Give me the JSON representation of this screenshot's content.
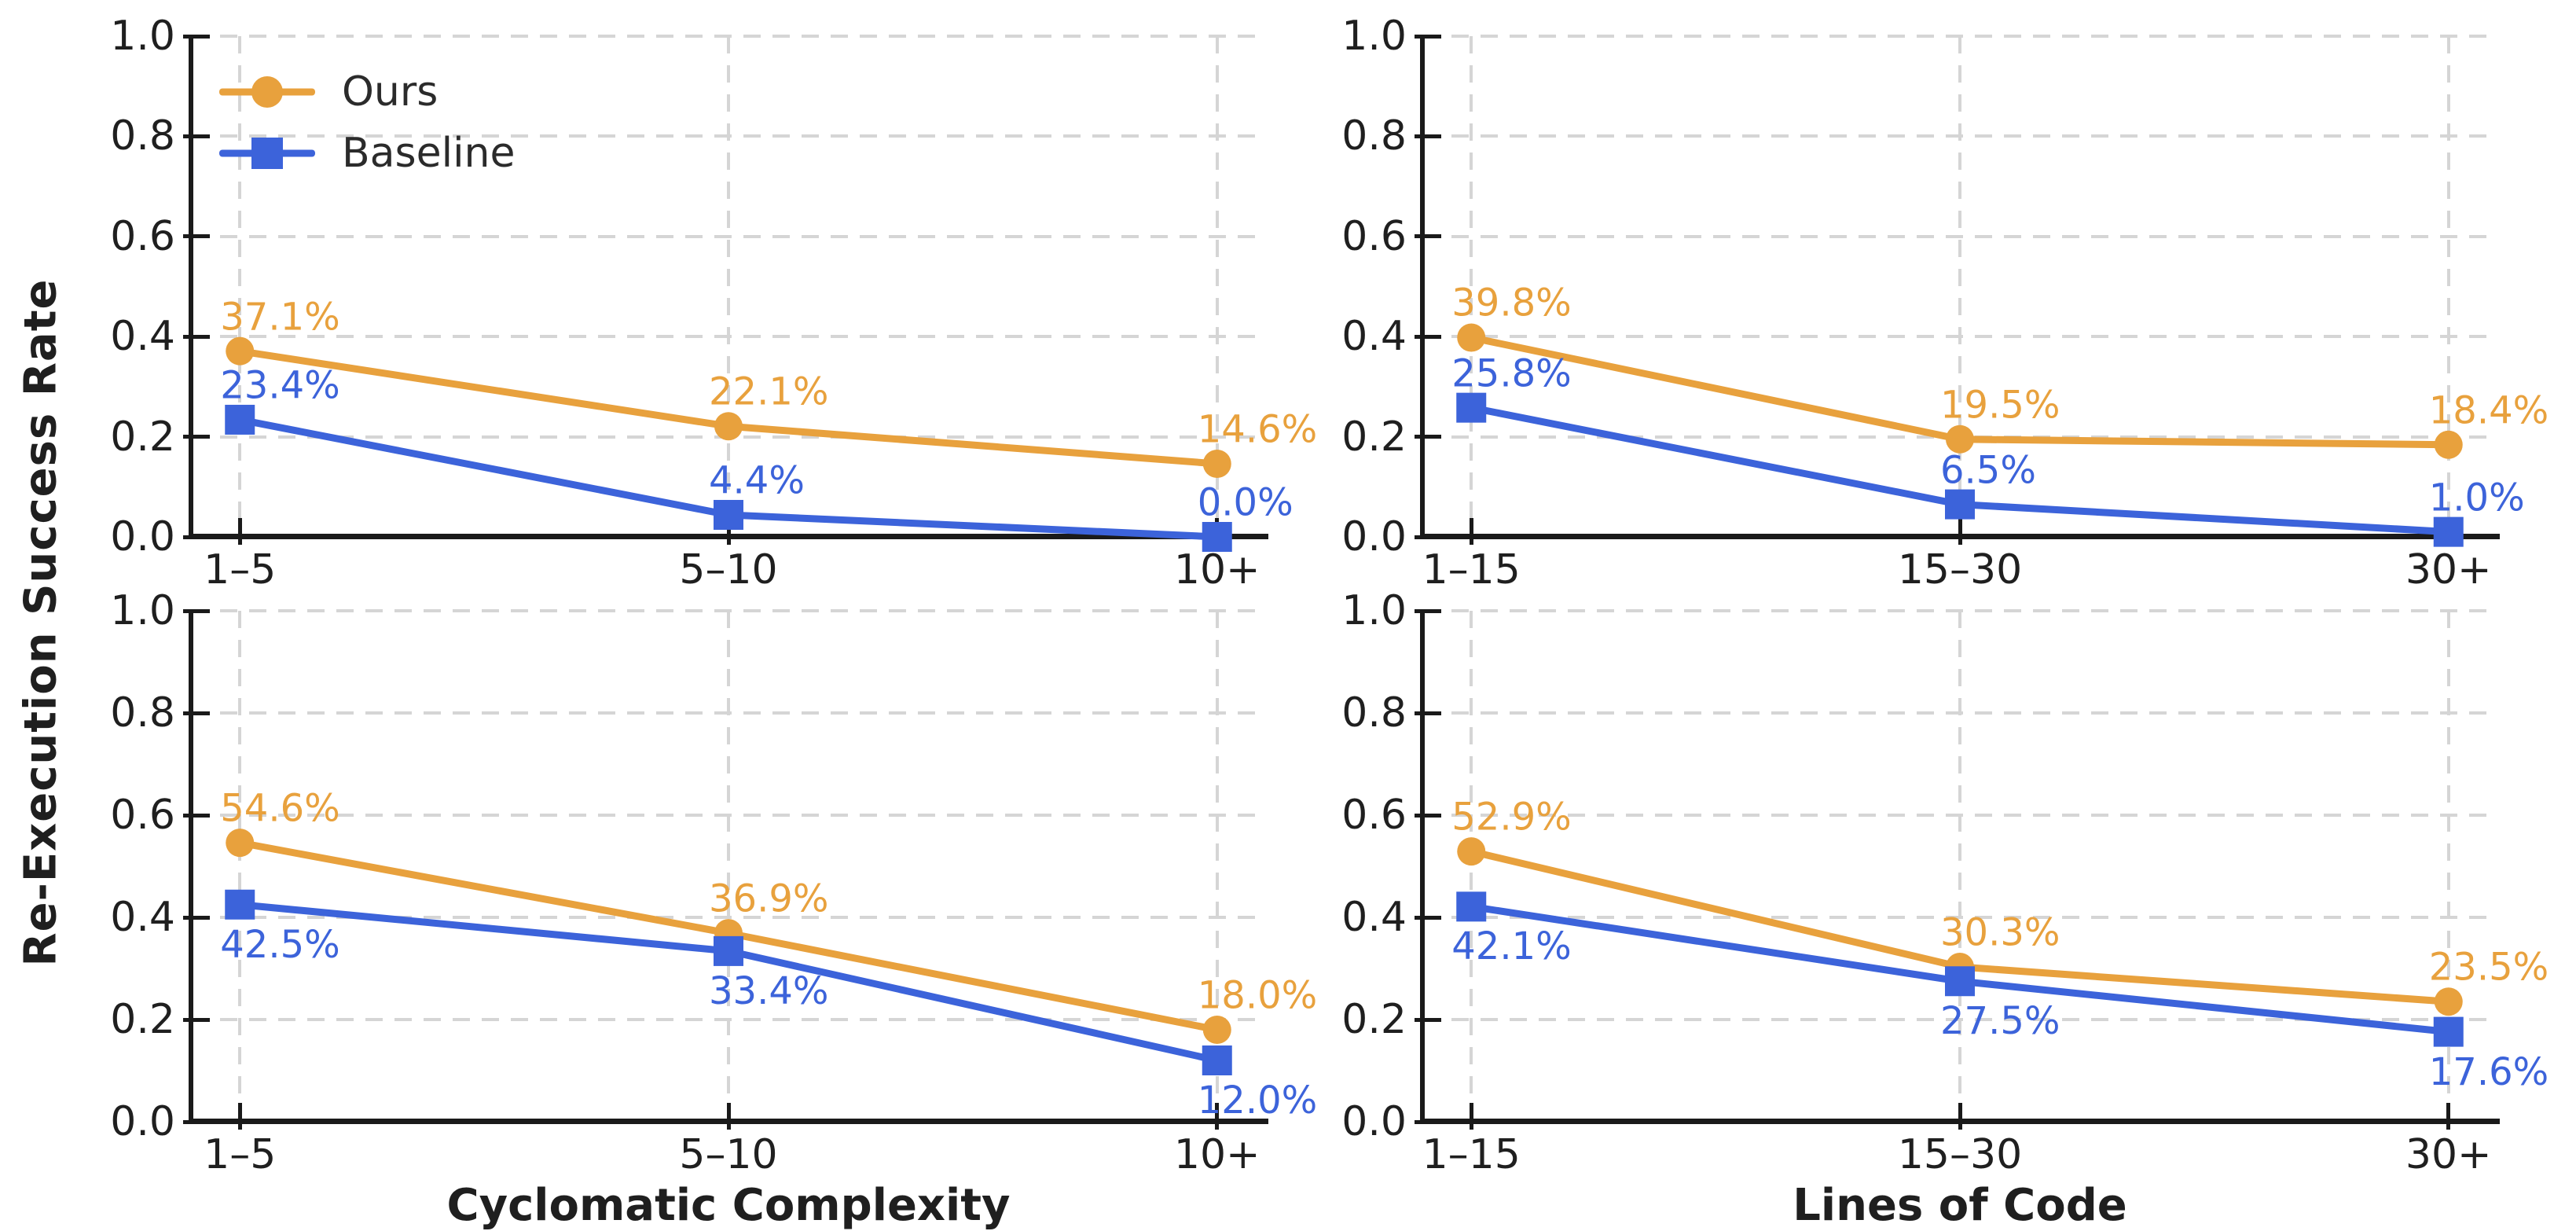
{
  "figure": {
    "ylabel": "Re-Execution Success Rate",
    "yticks": [
      "0.0",
      "0.2",
      "0.4",
      "0.6",
      "0.8",
      "1.0"
    ],
    "colors": {
      "ours": "#E8A13D",
      "baseline": "#3C63DA",
      "grid": "#D5D5D5",
      "spine": "#1A1A1A",
      "text": "#1F1F1F"
    },
    "legend": {
      "items": [
        {
          "label": "Ours",
          "marker": "circle"
        },
        {
          "label": "Baseline",
          "marker": "square"
        }
      ]
    }
  },
  "chart_data": [
    {
      "type": "line",
      "position": "top-left",
      "title": "",
      "xlabel": "",
      "ylabel": "",
      "ylim": [
        0.0,
        1.0
      ],
      "grid": "dashed",
      "legend_position": "upper-left-inside",
      "categories": [
        "1–5",
        "5–10",
        "10+"
      ],
      "series": [
        {
          "name": "Ours",
          "marker": "circle",
          "values": [
            0.371,
            0.221,
            0.146
          ],
          "point_labels": [
            "37.1%",
            "22.1%",
            "14.6%"
          ],
          "label_side": "above"
        },
        {
          "name": "Baseline",
          "marker": "square",
          "values": [
            0.234,
            0.044,
            0.0
          ],
          "point_labels": [
            "23.4%",
            "4.4%",
            "0.0%"
          ],
          "label_side": "above"
        }
      ]
    },
    {
      "type": "line",
      "position": "top-right",
      "title": "",
      "xlabel": "",
      "ylabel": "",
      "ylim": [
        0.0,
        1.0
      ],
      "grid": "dashed",
      "categories": [
        "1–15",
        "15–30",
        "30+"
      ],
      "series": [
        {
          "name": "Ours",
          "marker": "circle",
          "values": [
            0.398,
            0.195,
            0.184
          ],
          "point_labels": [
            "39.8%",
            "19.5%",
            "18.4%"
          ],
          "label_side": "above"
        },
        {
          "name": "Baseline",
          "marker": "square",
          "values": [
            0.258,
            0.065,
            0.01
          ],
          "point_labels": [
            "25.8%",
            "6.5%",
            "1.0%"
          ],
          "label_side": "above"
        }
      ]
    },
    {
      "type": "line",
      "position": "bottom-left",
      "title": "",
      "xlabel": "Cyclomatic Complexity",
      "ylabel": "",
      "ylim": [
        0.0,
        1.0
      ],
      "grid": "dashed",
      "categories": [
        "1–5",
        "5–10",
        "10+"
      ],
      "series": [
        {
          "name": "Ours",
          "marker": "circle",
          "values": [
            0.546,
            0.369,
            0.18
          ],
          "point_labels": [
            "54.6%",
            "36.9%",
            "18.0%"
          ],
          "label_side": "above"
        },
        {
          "name": "Baseline",
          "marker": "square",
          "values": [
            0.425,
            0.334,
            0.12
          ],
          "point_labels": [
            "42.5%",
            "33.4%",
            "12.0%"
          ],
          "label_side": "below"
        }
      ]
    },
    {
      "type": "line",
      "position": "bottom-right",
      "title": "",
      "xlabel": "Lines of Code",
      "ylabel": "",
      "ylim": [
        0.0,
        1.0
      ],
      "grid": "dashed",
      "categories": [
        "1–15",
        "15–30",
        "30+"
      ],
      "series": [
        {
          "name": "Ours",
          "marker": "circle",
          "values": [
            0.529,
            0.303,
            0.235
          ],
          "point_labels": [
            "52.9%",
            "30.3%",
            "23.5%"
          ],
          "label_side": "above"
        },
        {
          "name": "Baseline",
          "marker": "square",
          "values": [
            0.421,
            0.275,
            0.176
          ],
          "point_labels": [
            "42.1%",
            "27.5%",
            "17.6%"
          ],
          "label_side": "below"
        }
      ]
    }
  ]
}
